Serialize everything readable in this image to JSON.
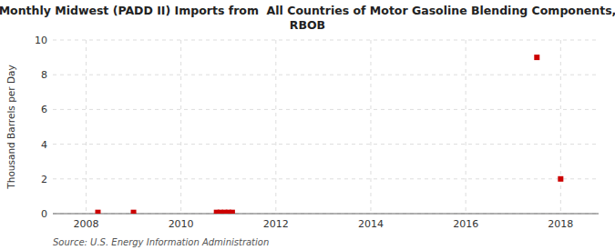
{
  "chart_data": {
    "type": "scatter",
    "title": "Monthly Midwest (PADD II) Imports from  All Countries of Motor Gasoline Blending Components,\nRBOB",
    "y_label": "Thousand Barrels per Day",
    "source": "Source: U.S. Energy Information Administration",
    "x": [
      2008.25,
      2009.0,
      2010.75,
      2010.83,
      2010.92,
      2011.0,
      2011.08,
      2017.5,
      2018.0
    ],
    "values": [
      0.07,
      0.07,
      0.07,
      0.07,
      0.07,
      0.07,
      0.07,
      9.0,
      2.0
    ],
    "color": "#cc0000",
    "marker": "square",
    "xlim": [
      2007.3,
      2018.8
    ],
    "ylim": [
      0,
      10
    ],
    "xticks": [
      2008,
      2010,
      2012,
      2014,
      2016,
      2018
    ],
    "yticks": [
      0,
      2,
      4,
      6,
      8,
      10
    ],
    "grid": true
  }
}
